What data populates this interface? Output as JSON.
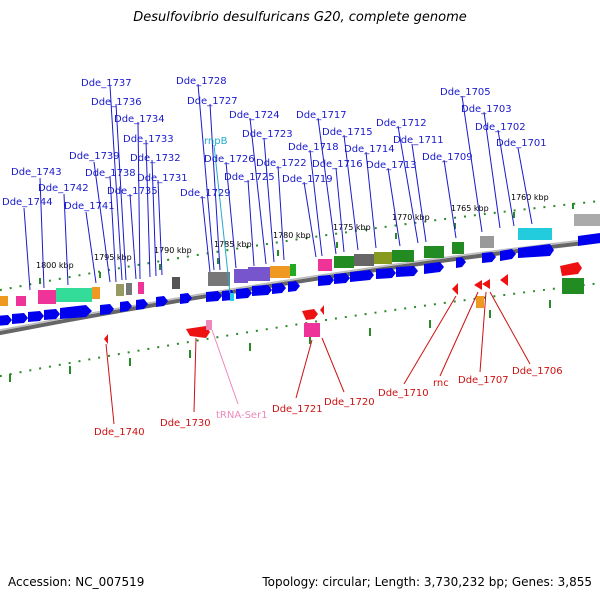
{
  "title": "Desulfovibrio desulfuricans G20, complete genome",
  "footer": {
    "accession": "Accession: NC_007519",
    "stats": "Topology: circular; Length: 3,730,232 bp; Genes: 3,855"
  },
  "colors": {
    "forward_gene": "#0000ee",
    "reverse_gene": "#ee1111",
    "backbone": "#888888",
    "tick": "#228b22",
    "top_label": "#1a1acc",
    "bottom_label": "#cc1111",
    "trna": "#ee88bb",
    "rnp": "#22aacc"
  },
  "scale_labels": [
    "1800 kbp",
    "1795 kbp",
    "1790 kbp",
    "1785 kbp",
    "1780 kbp",
    "1775 kbp",
    "1770 kbp",
    "1765 kbp",
    "1760 kbp"
  ],
  "top_labels": [
    "Dde_1744",
    "Dde_1743",
    "Dde_1742",
    "Dde_1741",
    "Dde_1739",
    "Dde_1738",
    "Dde_1737",
    "Dde_1736",
    "Dde_1735",
    "Dde_1734",
    "Dde_1733",
    "Dde_1732",
    "Dde_1731",
    "Dde_1729",
    "Dde_1728",
    "Dde_1727",
    "rnpB",
    "Dde_1726",
    "Dde_1725",
    "Dde_1724",
    "Dde_1723",
    "Dde_1722",
    "Dde_1719",
    "Dde_1718",
    "Dde_1717",
    "Dde_1716",
    "Dde_1715",
    "Dde_1714",
    "Dde_1713",
    "Dde_1712",
    "Dde_1711",
    "Dde_1709",
    "Dde_1705",
    "Dde_1703",
    "Dde_1702",
    "Dde_1701"
  ],
  "bottom_labels": [
    "Dde_1740",
    "Dde_1730",
    "tRNA-Ser1",
    "Dde_1721",
    "Dde_1720",
    "Dde_1710",
    "rnc",
    "Dde_1707",
    "Dde_1706"
  ]
}
